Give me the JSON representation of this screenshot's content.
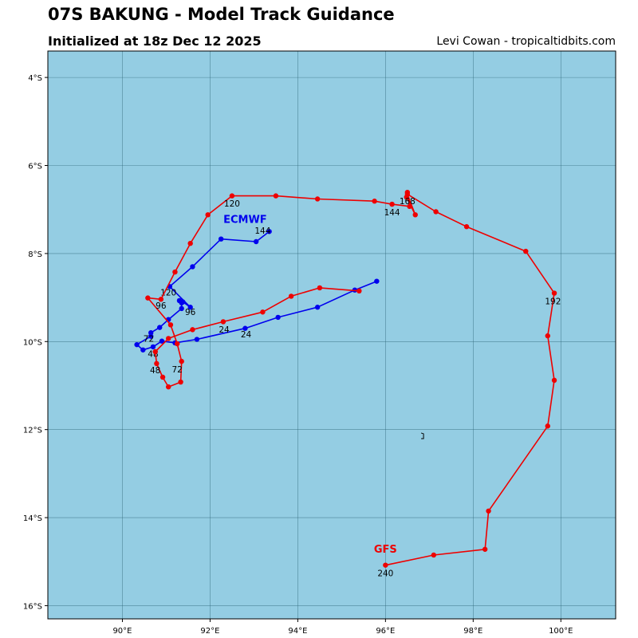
{
  "header": {
    "title": "07S BAKUNG - Model Track Guidance",
    "subtitle": "Initialized at 18z Dec 12 2025",
    "credit": "Levi Cowan - tropicaltidbits.com"
  },
  "colors": {
    "ocean": "#94cde3",
    "grid": "#2f6677",
    "ecmwf": "#0000ee",
    "gfs": "#ee0000"
  },
  "map": {
    "lon_range": [
      88.3,
      101.25
    ],
    "lat_range": [
      -16.3,
      -3.4
    ],
    "lon_ticks": [
      {
        "value": 90,
        "label": "90°E"
      },
      {
        "value": 92,
        "label": "92°E"
      },
      {
        "value": 94,
        "label": "94°E"
      },
      {
        "value": 96,
        "label": "96°E"
      },
      {
        "value": 98,
        "label": "98°E"
      },
      {
        "value": 100,
        "label": "100°E"
      }
    ],
    "lat_ticks": [
      {
        "value": -4,
        "label": "4°S"
      },
      {
        "value": -6,
        "label": "6°S"
      },
      {
        "value": -8,
        "label": "8°S"
      },
      {
        "value": -10,
        "label": "10°S"
      },
      {
        "value": -12,
        "label": "12°S"
      },
      {
        "value": -14,
        "label": "14°S"
      },
      {
        "value": -16,
        "label": "16°S"
      }
    ],
    "island": {
      "lon": 96.85,
      "lat": -12.15
    }
  },
  "tracks": [
    {
      "name": "ECMWF",
      "color": "#0000ee",
      "label_pos": {
        "lon": 92.8,
        "lat": -7.3
      },
      "points": [
        [
          95.8,
          -8.63
        ],
        [
          95.3,
          -8.83
        ],
        [
          94.45,
          -9.22
        ],
        [
          93.55,
          -9.45
        ],
        [
          92.8,
          -9.7
        ],
        [
          91.7,
          -9.95
        ],
        [
          91.2,
          -10.03
        ],
        [
          90.9,
          -9.99
        ],
        [
          90.7,
          -10.12
        ],
        [
          90.47,
          -10.19
        ],
        [
          90.33,
          -10.07
        ],
        [
          90.65,
          -9.88
        ],
        [
          90.65,
          -9.8
        ],
        [
          90.85,
          -9.68
        ],
        [
          91.05,
          -9.5
        ],
        [
          91.35,
          -9.25
        ],
        [
          91.35,
          -9.12
        ],
        [
          91.3,
          -9.07
        ],
        [
          91.38,
          -9.1
        ],
        [
          91.55,
          -9.22
        ],
        [
          91.08,
          -8.75
        ],
        [
          91.6,
          -8.3
        ],
        [
          92.25,
          -7.67
        ],
        [
          93.05,
          -7.73
        ],
        [
          93.35,
          -7.5
        ]
      ],
      "labels": [
        {
          "text": "24",
          "lon": 92.82,
          "lat": -9.9
        },
        {
          "text": "48",
          "lon": 90.7,
          "lat": -10.35
        },
        {
          "text": "72",
          "lon": 90.6,
          "lat": -10.0
        },
        {
          "text": "96",
          "lon": 91.55,
          "lat": -9.4
        },
        {
          "text": "120",
          "lon": 91.05,
          "lat": -8.95
        },
        {
          "text": "144",
          "lon": 93.2,
          "lat": -7.55
        }
      ]
    },
    {
      "name": "GFS",
      "color": "#ee0000",
      "label_pos": {
        "lon": 96.0,
        "lat": -14.8
      },
      "points": [
        [
          95.4,
          -8.85
        ],
        [
          94.5,
          -8.78
        ],
        [
          93.85,
          -8.97
        ],
        [
          93.2,
          -9.33
        ],
        [
          92.3,
          -9.55
        ],
        [
          91.6,
          -9.73
        ],
        [
          91.05,
          -9.93
        ],
        [
          90.75,
          -10.23
        ],
        [
          90.78,
          -10.5
        ],
        [
          90.92,
          -10.81
        ],
        [
          91.05,
          -11.03
        ],
        [
          91.33,
          -10.92
        ],
        [
          91.35,
          -10.45
        ],
        [
          91.25,
          -10.05
        ],
        [
          91.1,
          -9.62
        ],
        [
          90.58,
          -9.01
        ],
        [
          90.88,
          -9.04
        ],
        [
          91.2,
          -8.42
        ],
        [
          91.55,
          -7.77
        ],
        [
          91.95,
          -7.12
        ],
        [
          92.5,
          -6.69
        ],
        [
          93.5,
          -6.69
        ],
        [
          94.45,
          -6.76
        ],
        [
          95.75,
          -6.81
        ],
        [
          96.15,
          -6.88
        ],
        [
          96.55,
          -6.93
        ],
        [
          96.5,
          -6.61
        ],
        [
          96.48,
          -6.72
        ],
        [
          96.68,
          -7.12
        ],
        [
          96.5,
          -6.65
        ],
        [
          97.15,
          -7.05
        ],
        [
          97.85,
          -7.39
        ],
        [
          99.2,
          -7.95
        ],
        [
          99.85,
          -8.9
        ],
        [
          99.7,
          -9.87
        ],
        [
          99.85,
          -10.88
        ],
        [
          99.7,
          -11.92
        ],
        [
          98.35,
          -13.85
        ],
        [
          98.27,
          -14.72
        ],
        [
          97.1,
          -14.85
        ],
        [
          96.0,
          -15.08
        ]
      ],
      "labels": [
        {
          "text": "24",
          "lon": 92.32,
          "lat": -9.8
        },
        {
          "text": "48",
          "lon": 90.75,
          "lat": -10.72
        },
        {
          "text": "72",
          "lon": 91.25,
          "lat": -10.7
        },
        {
          "text": "96",
          "lon": 90.88,
          "lat": -9.25
        },
        {
          "text": "120",
          "lon": 92.5,
          "lat": -6.93
        },
        {
          "text": "144",
          "lon": 96.15,
          "lat": -7.13
        },
        {
          "text": "168",
          "lon": 96.5,
          "lat": -6.88
        },
        {
          "text": "192",
          "lon": 99.82,
          "lat": -9.15
        },
        {
          "text": "240",
          "lon": 96.0,
          "lat": -15.33
        }
      ]
    }
  ]
}
